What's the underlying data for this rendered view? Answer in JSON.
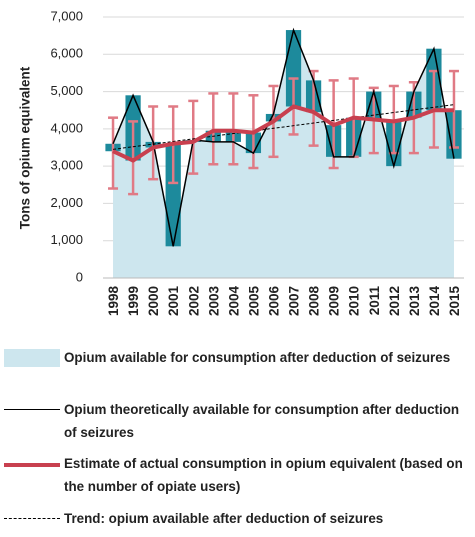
{
  "chart_data": {
    "type": "combo",
    "y_label": "Tons of opium equivalent",
    "categories": [
      "1998",
      "1999",
      "2000",
      "2001",
      "2002",
      "2003",
      "2004",
      "2005",
      "2006",
      "2007",
      "2008",
      "2009",
      "2010",
      "2011",
      "2012",
      "2013",
      "2014",
      "2015"
    ],
    "ylim": [
      0,
      7000
    ],
    "yticks": [
      0,
      {
        "value": 1000,
        "label": "1,000"
      },
      {
        "value": 2000,
        "label": "2,000"
      },
      {
        "value": 3000,
        "label": "3,000"
      },
      {
        "value": 4000,
        "label": "4,000"
      },
      {
        "value": 5000,
        "label": "5,000"
      },
      {
        "value": 6000,
        "label": "6,000"
      },
      {
        "value": 7000,
        "label": "7,000"
      }
    ],
    "grid": true,
    "series": [
      {
        "name": "Opium available for consumption after deduction of seizures",
        "type": "area",
        "color": "#cde6ee",
        "values": [
          3600,
          4900,
          3650,
          850,
          3700,
          3650,
          3650,
          3350,
          4400,
          6650,
          5300,
          3250,
          3250,
          5000,
          3000,
          5000,
          6150,
          3200
        ]
      },
      {
        "name": "Opium theoretically available for consumption after deduction of seizures",
        "type": "line",
        "color": "#000000",
        "values": [
          3600,
          4900,
          3650,
          850,
          3700,
          3650,
          3650,
          3350,
          4400,
          6650,
          5300,
          3250,
          3250,
          5000,
          3000,
          5000,
          6150,
          3200
        ]
      },
      {
        "name": "Estimate of actual consumption in opium equivalent (based on the number of opiate users)",
        "type": "line",
        "color": "#c8404f",
        "values": [
          3400,
          3150,
          3500,
          3600,
          3650,
          3950,
          3950,
          3900,
          4200,
          4600,
          4450,
          4100,
          4300,
          4250,
          4200,
          4300,
          4500,
          4500
        ],
        "low": [
          2400,
          2250,
          2650,
          2550,
          2800,
          3050,
          3050,
          2950,
          3250,
          3850,
          3550,
          2950,
          3250,
          3350,
          3350,
          3350,
          3500,
          3500
        ],
        "high": [
          4300,
          4200,
          4600,
          4600,
          4750,
          4950,
          4950,
          4900,
          5150,
          5350,
          5550,
          5300,
          5350,
          5100,
          5150,
          5250,
          5550,
          5550
        ]
      },
      {
        "name": "Trend: opium available after deduction of seizures",
        "type": "dashed",
        "color": "#000000",
        "values": [
          3450,
          3521,
          3591,
          3662,
          3732,
          3803,
          3874,
          3944,
          4015,
          4085,
          4156,
          4227,
          4297,
          4368,
          4438,
          4509,
          4579,
          4650
        ]
      }
    ],
    "bar_color": "#1d8a9c",
    "error_color": "#e07a85"
  }
}
